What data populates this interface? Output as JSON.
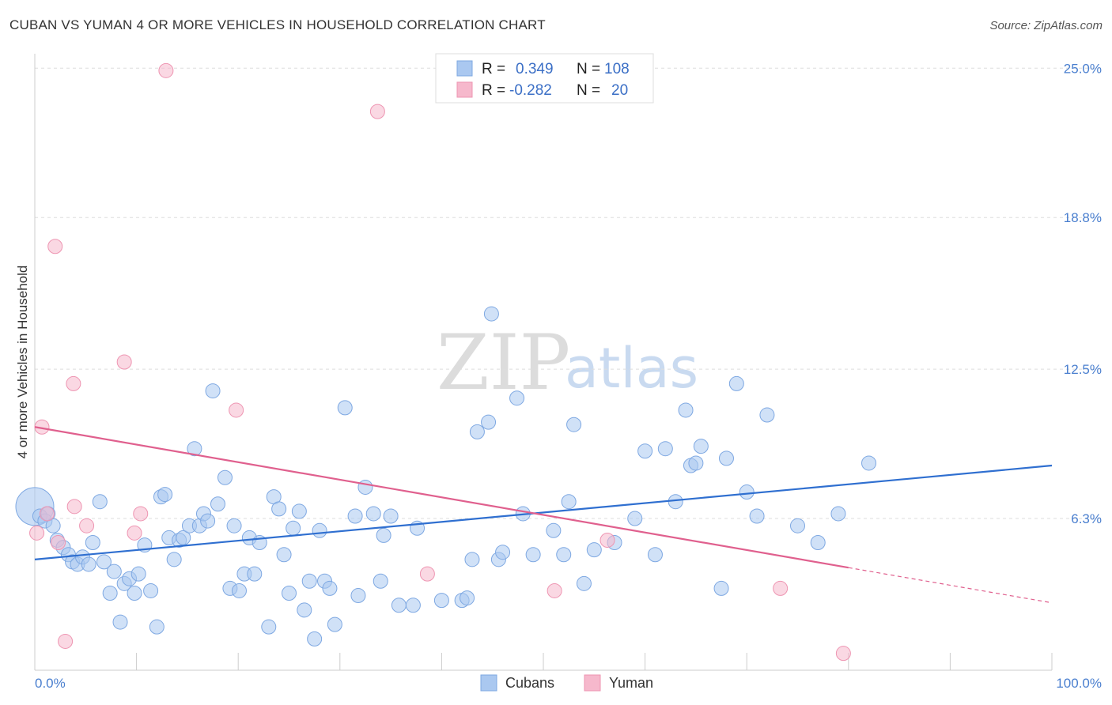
{
  "title": "CUBAN VS YUMAN 4 OR MORE VEHICLES IN HOUSEHOLD CORRELATION CHART",
  "source": "Source: ZipAtlas.com",
  "watermark": {
    "zip": "ZIP",
    "atlas": "atlas"
  },
  "legend": {
    "rows": [
      {
        "r_label": "R =",
        "r_value": "0.349",
        "n_label": "N =",
        "n_value": "108"
      },
      {
        "r_label": "R =",
        "r_value": "-0.282",
        "n_label": "N =",
        "n_value": "20"
      }
    ]
  },
  "bottom_legend": [
    "Cubans",
    "Yuman"
  ],
  "colors": {
    "cubans_fill": "#aac8f0",
    "cubans_stroke": "#7ea8e2",
    "cubans_line": "#2f6fd0",
    "yuman_fill": "#f6b8cc",
    "yuman_stroke": "#ee95b2",
    "yuman_line": "#e0608e",
    "tick_label": "#4a7fcf",
    "grid": "#dddddd"
  },
  "chart_data": {
    "type": "scatter",
    "title": "CUBAN VS YUMAN 4 OR MORE VEHICLES IN HOUSEHOLD CORRELATION CHART",
    "xlabel": "",
    "ylabel": "4 or more Vehicles in Household",
    "xlim": [
      0,
      100
    ],
    "ylim": [
      0,
      25.6
    ],
    "x_tick_labels": [
      "0.0%",
      "100.0%"
    ],
    "y_ticks": [
      6.3,
      12.5,
      18.8,
      25.0
    ],
    "y_tick_labels": [
      "6.3%",
      "12.5%",
      "18.8%",
      "25.0%"
    ],
    "grid": true,
    "legend_position": "top-center",
    "series": [
      {
        "name": "Cubans",
        "R": 0.349,
        "N": 108,
        "trend": {
          "x": [
            0,
            100
          ],
          "y": [
            4.6,
            8.5
          ]
        },
        "points": [
          [
            0.5,
            6.4
          ],
          [
            1.0,
            6.2
          ],
          [
            1.3,
            6.5
          ],
          [
            1.8,
            6.0
          ],
          [
            2.2,
            5.4
          ],
          [
            2.8,
            5.1
          ],
          [
            3.3,
            4.8
          ],
          [
            3.7,
            4.5
          ],
          [
            4.2,
            4.4
          ],
          [
            4.7,
            4.7
          ],
          [
            5.3,
            4.4
          ],
          [
            5.7,
            5.3
          ],
          [
            6.4,
            7.0
          ],
          [
            6.8,
            4.5
          ],
          [
            7.4,
            3.2
          ],
          [
            7.8,
            4.1
          ],
          [
            8.4,
            2.0
          ],
          [
            8.8,
            3.6
          ],
          [
            9.3,
            3.8
          ],
          [
            9.8,
            3.2
          ],
          [
            10.2,
            4.0
          ],
          [
            10.8,
            5.2
          ],
          [
            11.4,
            3.3
          ],
          [
            12.0,
            1.8
          ],
          [
            12.4,
            7.2
          ],
          [
            12.8,
            7.3
          ],
          [
            13.2,
            5.5
          ],
          [
            13.7,
            4.6
          ],
          [
            14.2,
            5.4
          ],
          [
            14.6,
            5.5
          ],
          [
            15.2,
            6.0
          ],
          [
            15.7,
            9.2
          ],
          [
            16.2,
            6.0
          ],
          [
            16.6,
            6.5
          ],
          [
            17.0,
            6.2
          ],
          [
            17.5,
            11.6
          ],
          [
            18.0,
            6.9
          ],
          [
            18.7,
            8.0
          ],
          [
            19.2,
            3.4
          ],
          [
            19.6,
            6.0
          ],
          [
            20.1,
            3.3
          ],
          [
            20.6,
            4.0
          ],
          [
            21.1,
            5.5
          ],
          [
            21.6,
            4.0
          ],
          [
            22.1,
            5.3
          ],
          [
            23.0,
            1.8
          ],
          [
            23.5,
            7.2
          ],
          [
            24.0,
            6.7
          ],
          [
            24.5,
            4.8
          ],
          [
            25.0,
            3.2
          ],
          [
            25.4,
            5.9
          ],
          [
            26.0,
            6.6
          ],
          [
            26.5,
            2.5
          ],
          [
            27.0,
            3.7
          ],
          [
            27.5,
            1.3
          ],
          [
            28.0,
            5.8
          ],
          [
            28.5,
            3.7
          ],
          [
            29.0,
            3.4
          ],
          [
            29.5,
            1.9
          ],
          [
            30.5,
            10.9
          ],
          [
            31.5,
            6.4
          ],
          [
            31.8,
            3.1
          ],
          [
            32.5,
            7.6
          ],
          [
            33.3,
            6.5
          ],
          [
            34.0,
            3.7
          ],
          [
            34.3,
            5.6
          ],
          [
            35.0,
            6.4
          ],
          [
            35.8,
            2.7
          ],
          [
            37.2,
            2.7
          ],
          [
            37.6,
            5.9
          ],
          [
            40.0,
            2.9
          ],
          [
            42.0,
            2.9
          ],
          [
            42.5,
            3.0
          ],
          [
            43.0,
            4.6
          ],
          [
            43.5,
            9.9
          ],
          [
            44.6,
            10.3
          ],
          [
            44.9,
            14.8
          ],
          [
            45.6,
            4.6
          ],
          [
            46.0,
            4.9
          ],
          [
            47.4,
            11.3
          ],
          [
            48.0,
            6.5
          ],
          [
            49.0,
            4.8
          ],
          [
            51.0,
            5.8
          ],
          [
            52.0,
            4.8
          ],
          [
            52.5,
            7.0
          ],
          [
            53.0,
            10.2
          ],
          [
            54.0,
            3.6
          ],
          [
            55.0,
            5.0
          ],
          [
            57.0,
            5.3
          ],
          [
            59.0,
            6.3
          ],
          [
            60.0,
            9.1
          ],
          [
            61.0,
            4.8
          ],
          [
            62.0,
            9.2
          ],
          [
            63.0,
            7.0
          ],
          [
            64.0,
            10.8
          ],
          [
            64.5,
            8.5
          ],
          [
            65.0,
            8.6
          ],
          [
            65.5,
            9.3
          ],
          [
            67.5,
            3.4
          ],
          [
            68.0,
            8.8
          ],
          [
            69.0,
            11.9
          ],
          [
            70.0,
            7.4
          ],
          [
            71.0,
            6.4
          ],
          [
            72.0,
            10.6
          ],
          [
            75.0,
            6.0
          ],
          [
            77.0,
            5.3
          ],
          [
            79.0,
            6.5
          ],
          [
            82.0,
            8.6
          ]
        ]
      },
      {
        "name": "Yuman",
        "R": -0.282,
        "N": 20,
        "trend": {
          "x": [
            0,
            100
          ],
          "y": [
            10.1,
            2.8
          ]
        },
        "points": [
          [
            0.2,
            5.7
          ],
          [
            0.7,
            10.1
          ],
          [
            1.2,
            6.5
          ],
          [
            2.0,
            17.6
          ],
          [
            2.3,
            5.3
          ],
          [
            3.0,
            1.2
          ],
          [
            3.8,
            11.9
          ],
          [
            3.9,
            6.8
          ],
          [
            5.1,
            6.0
          ],
          [
            8.8,
            12.8
          ],
          [
            9.8,
            5.7
          ],
          [
            10.4,
            6.5
          ],
          [
            12.9,
            24.9
          ],
          [
            19.8,
            10.8
          ],
          [
            33.7,
            23.2
          ],
          [
            38.6,
            4.0
          ],
          [
            51.1,
            3.3
          ],
          [
            56.3,
            5.4
          ],
          [
            73.3,
            3.4
          ],
          [
            79.5,
            0.7
          ]
        ]
      }
    ]
  }
}
